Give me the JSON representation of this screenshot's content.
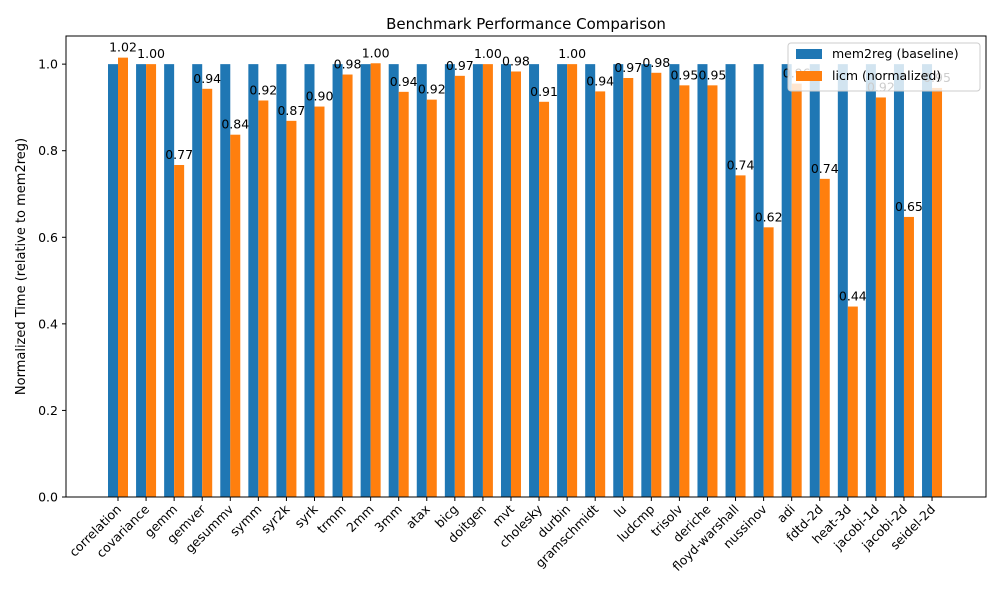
{
  "chart_data": {
    "type": "bar",
    "title": "Benchmark Performance Comparison",
    "xlabel": "",
    "ylabel": "Normalized Time (relative to mem2reg)",
    "ylim": [
      0,
      1.065
    ],
    "yticks": [
      0.0,
      0.2,
      0.4,
      0.6,
      0.8,
      1.0
    ],
    "ytick_labels": [
      "0.0",
      "0.2",
      "0.4",
      "0.6",
      "0.8",
      "1.0"
    ],
    "legend_position": "top-right",
    "grid": false,
    "categories": [
      "correlation",
      "covariance",
      "gemm",
      "gemver",
      "gesummv",
      "symm",
      "syr2k",
      "syrk",
      "trmm",
      "2mm",
      "3mm",
      "atax",
      "bicg",
      "doitgen",
      "mvt",
      "cholesky",
      "durbin",
      "gramschmidt",
      "lu",
      "ludcmp",
      "trisolv",
      "deriche",
      "floyd-warshall",
      "nussinov",
      "adi",
      "fdtd-2d",
      "heat-3d",
      "jacobi-1d",
      "jacobi-2d",
      "seidel-2d"
    ],
    "series": [
      {
        "name": "mem2reg (baseline)",
        "color": "#1f77b4",
        "values": [
          1,
          1,
          1,
          1,
          1,
          1,
          1,
          1,
          1,
          1,
          1,
          1,
          1,
          1,
          1,
          1,
          1,
          1,
          1,
          1,
          1,
          1,
          1,
          1,
          1,
          1,
          1,
          1,
          1,
          1
        ]
      },
      {
        "name": "licm (normalized)",
        "color": "#ff7f0e",
        "values": [
          1.015,
          1.0,
          0.767,
          0.943,
          0.837,
          0.916,
          0.869,
          0.902,
          0.976,
          1.002,
          0.936,
          0.918,
          0.973,
          1.0,
          0.983,
          0.913,
          1.0,
          0.937,
          0.968,
          0.98,
          0.951,
          0.951,
          0.743,
          0.623,
          0.955,
          0.735,
          0.44,
          0.923,
          0.647,
          0.945
        ],
        "labels": [
          "1.02",
          "1.00",
          "0.77",
          "0.94",
          "0.84",
          "0.92",
          "0.87",
          "0.90",
          "0.98",
          "1.00",
          "0.94",
          "0.92",
          "0.97",
          "1.00",
          "0.98",
          "0.91",
          "1.00",
          "0.94",
          "0.97",
          "0.98",
          "0.95",
          "0.95",
          "0.74",
          "0.62",
          "0.96",
          "0.74",
          "0.44",
          "0.92",
          "0.65",
          "0.95"
        ]
      }
    ]
  }
}
